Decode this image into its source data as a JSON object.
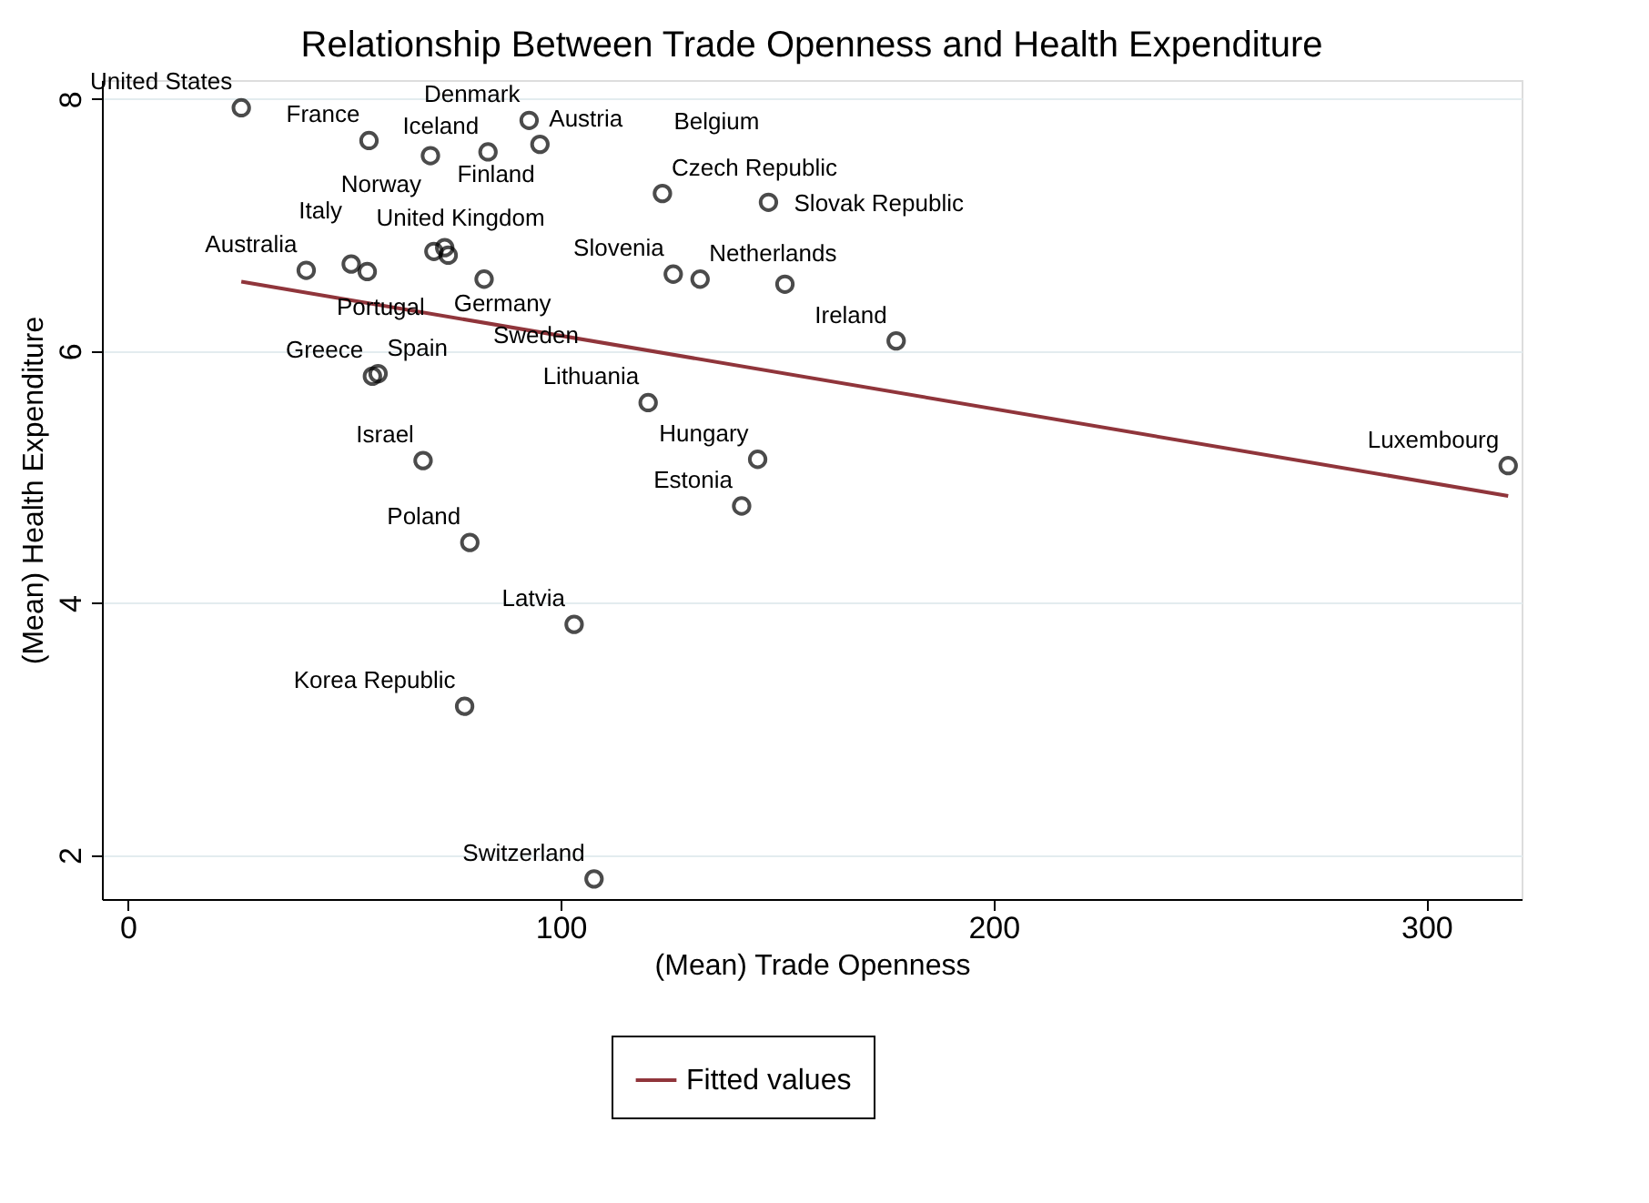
{
  "chart_data": {
    "type": "scatter",
    "title": "Relationship Between Trade Openness and Health Expenditure",
    "xlabel": "(Mean) Trade Openness",
    "ylabel": "(Mean) Health Expenditure",
    "xlim": [
      -6,
      322
    ],
    "ylim": [
      1.65,
      8.15
    ],
    "xticks": [
      0,
      100,
      200,
      300
    ],
    "yticks": [
      2,
      4,
      6,
      8
    ],
    "grid": "y",
    "legend": "bottom",
    "marker": "circle",
    "series": [
      {
        "color": "#000000",
        "x": [
          26.2,
          55.7,
          69.9,
          83.2,
          95.2,
          92.7,
          123.5,
          148,
          126,
          132.2,
          151.8,
          177.5,
          120.2,
          145.5,
          141.8,
          318.9,
          56.5,
          57.8,
          68.2,
          79.0,
          103.1,
          77.8,
          107.7,
          41.2,
          51.6,
          55.3,
          70.7,
          73.2,
          74.0,
          82.3
        ],
        "values": [
          7.93,
          7.67,
          7.55,
          7.58,
          7.64,
          7.83,
          7.25,
          7.18,
          6.61,
          6.57,
          6.53,
          6.08,
          5.59,
          5.14,
          4.77,
          5.09,
          5.8,
          5.82,
          5.13,
          4.48,
          3.83,
          3.18,
          1.81,
          6.64,
          6.69,
          6.63,
          6.79,
          6.82,
          6.76,
          6.57
        ]
      },
      {
        "type": "line",
        "name": "Fitted values",
        "color": "#90353b",
        "line_style": "solid",
        "marker": "none",
        "x": [
          26.2,
          318.9
        ],
        "values": [
          6.55,
          4.85
        ]
      }
    ],
    "annotations": [
      {
        "text": "United States",
        "x": 26.2,
        "y": 7.93
      },
      {
        "text": "France",
        "x": 55.7,
        "y": 7.67
      },
      {
        "text": "Norway",
        "x": 69.9,
        "y": 7.55
      },
      {
        "text": "Iceland",
        "x": 83.2,
        "y": 7.58
      },
      {
        "text": "Austria",
        "x": 95.2,
        "y": 7.64
      },
      {
        "text": "Denmark",
        "x": 92.7,
        "y": 7.83
      },
      {
        "text": "Czech Republic",
        "x": 123.5,
        "y": 7.25
      },
      {
        "text": "Belgium",
        "x": 148,
        "y": 7.18
      },
      {
        "text": "Slovenia",
        "x": 126,
        "y": 6.61
      },
      {
        "text": "Netherlands",
        "x": 132.2,
        "y": 6.57
      },
      {
        "text": "Slovak Republic",
        "x": 151.8,
        "y": 6.53
      },
      {
        "text": "Ireland",
        "x": 177.5,
        "y": 6.08
      },
      {
        "text": "Lithuania",
        "x": 120.2,
        "y": 5.59
      },
      {
        "text": "Hungary",
        "x": 145.5,
        "y": 5.14
      },
      {
        "text": "Estonia",
        "x": 141.8,
        "y": 4.77
      },
      {
        "text": "Luxembourg",
        "x": 318.9,
        "y": 5.09
      },
      {
        "text": "Greece",
        "x": 56.5,
        "y": 5.8
      },
      {
        "text": "Spain",
        "x": 57.8,
        "y": 5.82
      },
      {
        "text": "Israel",
        "x": 68.2,
        "y": 5.13
      },
      {
        "text": "Poland",
        "x": 79.0,
        "y": 4.48
      },
      {
        "text": "Latvia",
        "x": 103.1,
        "y": 3.83
      },
      {
        "text": "Korea Republic",
        "x": 77.8,
        "y": 3.18
      },
      {
        "text": "Switzerland",
        "x": 107.7,
        "y": 1.81
      },
      {
        "text": "Australia",
        "x": 41.2,
        "y": 6.64
      },
      {
        "text": "Italy",
        "x": 51.6,
        "y": 6.69
      },
      {
        "text": "United Kingdom",
        "x": 55.3,
        "y": 6.63
      },
      {
        "text": "Portugal",
        "x": 70.7,
        "y": 6.79
      },
      {
        "text": "Germany",
        "x": 73.2,
        "y": 6.82
      },
      {
        "text": "Finland",
        "x": 74.0,
        "y": 6.76
      },
      {
        "text": "Sweden",
        "x": 82.3,
        "y": 6.57
      }
    ]
  }
}
